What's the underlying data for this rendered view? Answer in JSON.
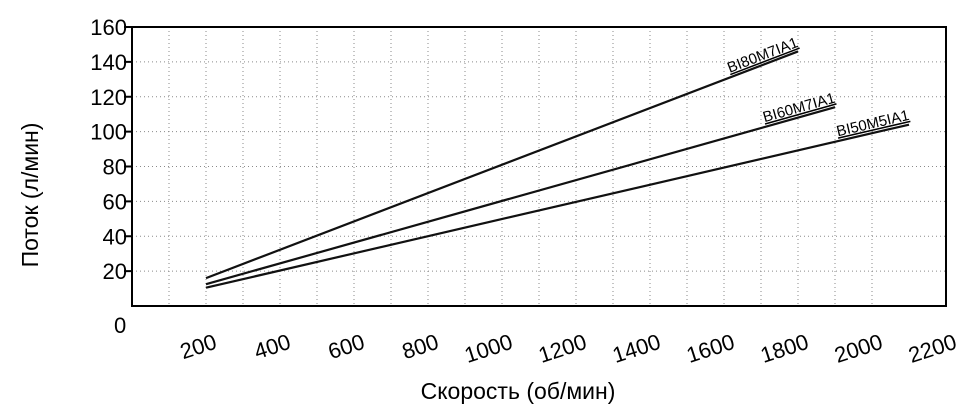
{
  "chart_data": {
    "type": "line",
    "xlabel": "Скорость (об/мин)",
    "ylabel": "Поток (л/мин)",
    "origin_label": "0",
    "x_ticks": [
      200,
      400,
      600,
      800,
      1000,
      1200,
      1400,
      1600,
      1800,
      2000,
      2200
    ],
    "x_tick_labels": [
      "200",
      "400",
      "600",
      "800",
      "1000",
      "1200",
      "1400",
      "1600",
      "1800",
      "2000",
      "2200"
    ],
    "y_ticks": [
      20,
      40,
      60,
      80,
      100,
      120,
      140,
      160
    ],
    "y_tick_labels": [
      "20",
      "40",
      "60",
      "80",
      "100",
      "120",
      "140",
      "160"
    ],
    "xlim": [
      0,
      2200
    ],
    "ylim": [
      0,
      160
    ],
    "grid": true,
    "series": [
      {
        "name": "BI80M7IA1",
        "x": [
          200,
          1800
        ],
        "y": [
          16,
          146
        ]
      },
      {
        "name": "BI60M7IA1",
        "x": [
          200,
          1900
        ],
        "y": [
          12.5,
          114
        ]
      },
      {
        "name": "BI50M5IA1",
        "x": [
          200,
          2100
        ],
        "y": [
          10.5,
          104
        ]
      }
    ]
  }
}
